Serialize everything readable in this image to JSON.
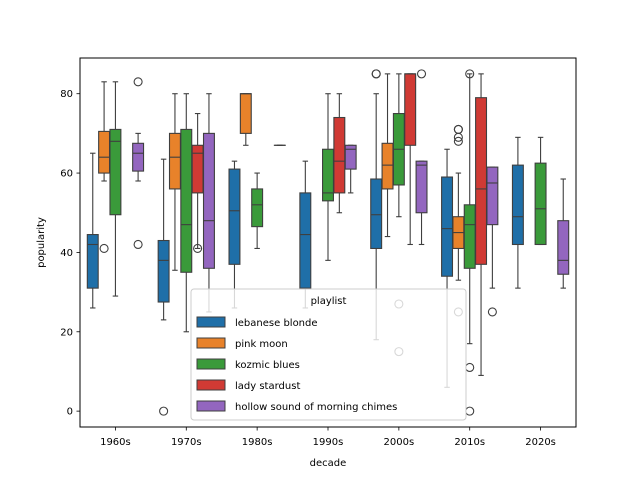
{
  "chart_data": {
    "type": "box",
    "xlabel": "decade",
    "ylabel": "popularity",
    "ylim": [
      -4,
      89
    ],
    "yticks": [
      0,
      20,
      40,
      60,
      80
    ],
    "categories": [
      "1960s",
      "1970s",
      "1980s",
      "1990s",
      "2000s",
      "2010s",
      "2020s"
    ],
    "legend": {
      "title": "playlist",
      "placement": "lower-center"
    },
    "grid": false,
    "series": [
      {
        "name": "lebanese blonde",
        "color": "#1f6fa8",
        "boxes": [
          {
            "category": "1960s",
            "whisker_low": 26,
            "q1": 31,
            "median": 42,
            "q3": 44.5,
            "whisker_high": 65,
            "outliers": []
          },
          {
            "category": "1970s",
            "whisker_low": 23,
            "q1": 27.5,
            "median": 38,
            "q3": 43,
            "whisker_high": 63.5,
            "outliers": [
              0
            ]
          },
          {
            "category": "1980s",
            "whisker_low": 26,
            "q1": 37,
            "median": 50.5,
            "q3": 61,
            "whisker_high": 63,
            "outliers": []
          },
          {
            "category": "1990s",
            "whisker_low": 26,
            "q1": 31,
            "median": 44.5,
            "q3": 55,
            "whisker_high": 63,
            "outliers": []
          },
          {
            "category": "2000s",
            "whisker_low": 18,
            "q1": 41,
            "median": 49.5,
            "q3": 58.5,
            "whisker_high": 80,
            "outliers": [
              85,
              85
            ]
          },
          {
            "category": "2010s",
            "whisker_low": 6,
            "q1": 34,
            "median": 46,
            "q3": 59,
            "whisker_high": 66,
            "outliers": []
          },
          {
            "category": "2020s",
            "whisker_low": 31,
            "q1": 42,
            "median": 49,
            "q3": 62,
            "whisker_high": 69,
            "outliers": []
          }
        ]
      },
      {
        "name": "pink moon",
        "color": "#e8822a",
        "boxes": [
          {
            "category": "1960s",
            "whisker_low": 58,
            "q1": 60,
            "median": 64,
            "q3": 70.5,
            "whisker_high": 83,
            "outliers": [
              41
            ]
          },
          {
            "category": "1970s",
            "whisker_low": 35.5,
            "q1": 56,
            "median": 64,
            "q3": 70,
            "whisker_high": 80,
            "outliers": []
          },
          {
            "category": "1980s",
            "whisker_low": 67,
            "q1": 70,
            "median": 80,
            "q3": 80,
            "whisker_high": 80,
            "outliers": []
          },
          {
            "category": "2000s",
            "whisker_low": 44,
            "q1": 56,
            "median": 62,
            "q3": 67.5,
            "whisker_high": 85,
            "outliers": []
          },
          {
            "category": "2010s",
            "whisker_low": 33,
            "q1": 41,
            "median": 45,
            "q3": 49,
            "whisker_high": 60,
            "outliers": [
              71,
              71,
              69,
              68,
              25
            ]
          }
        ]
      },
      {
        "name": "kozmic blues",
        "color": "#3a9a3a",
        "boxes": [
          {
            "category": "1960s",
            "whisker_low": 29,
            "q1": 49.5,
            "median": 68,
            "q3": 71,
            "whisker_high": 83,
            "outliers": []
          },
          {
            "category": "1970s",
            "whisker_low": 20,
            "q1": 35,
            "median": 47,
            "q3": 71,
            "whisker_high": 80,
            "outliers": []
          },
          {
            "category": "1980s",
            "whisker_low": 41,
            "q1": 46.5,
            "median": 52,
            "q3": 56,
            "whisker_high": 60,
            "outliers": []
          },
          {
            "category": "1990s",
            "whisker_low": 38,
            "q1": 53,
            "median": 55,
            "q3": 66,
            "whisker_high": 80,
            "outliers": []
          },
          {
            "category": "2000s",
            "whisker_low": 49,
            "q1": 57,
            "median": 66,
            "q3": 75,
            "whisker_high": 85,
            "outliers": [
              27,
              15
            ]
          },
          {
            "category": "2010s",
            "whisker_low": 17,
            "q1": 36,
            "median": 47,
            "q3": 52,
            "whisker_high": 85,
            "outliers": [
              85,
              11,
              0
            ]
          },
          {
            "category": "2020s",
            "whisker_low": 42,
            "q1": 42,
            "median": 51,
            "q3": 62.5,
            "whisker_high": 69,
            "outliers": []
          }
        ]
      },
      {
        "name": "lady stardust",
        "color": "#d03a34",
        "boxes": [
          {
            "category": "1970s",
            "whisker_low": 41,
            "q1": 55,
            "median": 65,
            "q3": 67,
            "whisker_high": 75,
            "outliers": [
              41
            ]
          },
          {
            "category": "1990s",
            "whisker_low": 50,
            "q1": 55,
            "median": 63,
            "q3": 74,
            "whisker_high": 80,
            "outliers": []
          },
          {
            "category": "2000s",
            "whisker_low": 42,
            "q1": 67,
            "median": 85,
            "q3": 85,
            "whisker_high": 85,
            "outliers": []
          },
          {
            "category": "2010s",
            "whisker_low": 9,
            "q1": 37,
            "median": 56,
            "q3": 79,
            "whisker_high": 85,
            "outliers": []
          }
        ]
      },
      {
        "name": "hollow sound of morning chimes",
        "color": "#9366bf",
        "boxes": [
          {
            "category": "1960s",
            "whisker_low": 58,
            "q1": 60.5,
            "median": 65,
            "q3": 67.5,
            "whisker_high": 70,
            "outliers": [
              83,
              42
            ]
          },
          {
            "category": "1970s",
            "whisker_low": 25,
            "q1": 36,
            "median": 48,
            "q3": 70,
            "whisker_high": 80,
            "outliers": []
          },
          {
            "category": "1980s",
            "whisker_low": 67,
            "q1": 67,
            "median": 67,
            "q3": 67,
            "whisker_high": 67,
            "outliers": []
          },
          {
            "category": "1990s",
            "whisker_low": 55,
            "q1": 61,
            "median": 66,
            "q3": 67,
            "whisker_high": 67,
            "outliers": []
          },
          {
            "category": "2000s",
            "whisker_low": 42,
            "q1": 50,
            "median": 62,
            "q3": 63,
            "whisker_high": 63,
            "outliers": [
              85
            ]
          },
          {
            "category": "2010s",
            "whisker_low": 31,
            "q1": 47,
            "median": 57.5,
            "q3": 61.5,
            "whisker_high": 61.5,
            "outliers": [
              25
            ]
          },
          {
            "category": "2020s",
            "whisker_low": 31,
            "q1": 34.5,
            "median": 38,
            "q3": 48,
            "whisker_high": 58.5,
            "outliers": []
          }
        ]
      }
    ]
  }
}
